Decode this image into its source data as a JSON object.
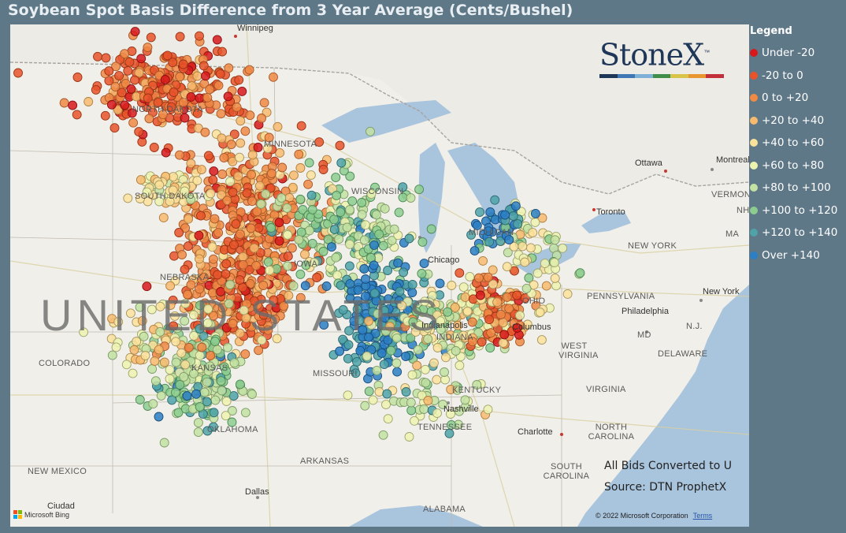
{
  "title": "Soybean Spot Basis Difference from 3 Year Average (Cents/Bushel)",
  "logo": {
    "text": "StoneX",
    "tm": "™",
    "bar_colors": [
      "#1e3658",
      "#3e77b4",
      "#7fb0d8",
      "#3f8e4a",
      "#d9c44a",
      "#e8972f",
      "#c2303a"
    ]
  },
  "legend": {
    "title": "Legend",
    "items": [
      {
        "label": "Under -20",
        "color": "#d7191c"
      },
      {
        "label": "-20 to 0",
        "color": "#e8532c"
      },
      {
        "label": "0 to +20",
        "color": "#f08a45"
      },
      {
        "label": "+20 to +40",
        "color": "#f7bb70"
      },
      {
        "label": "+40 to +60",
        "color": "#fbe29b"
      },
      {
        "label": "+60 to +80",
        "color": "#eef3b0"
      },
      {
        "label": "+80 to +100",
        "color": "#c3e2a3"
      },
      {
        "label": "+100 to +120",
        "color": "#8ccc8f"
      },
      {
        "label": "+120 to +140",
        "color": "#4fa3a8"
      },
      {
        "label": "Over +140",
        "color": "#2b7fc4"
      }
    ]
  },
  "map": {
    "country_label": "UNITED STATES",
    "states": [
      "NORTH DAKOTA",
      "MINNESOTA",
      "SOUTH DAKOTA",
      "WISCONSIN",
      "NEBRASKA",
      "IOWA",
      "COLORADO",
      "MISSOURI",
      "KANSAS",
      "OKLAHOMA",
      "ARKANSAS",
      "NEW MEXICO",
      "TENNESSEE",
      "KENTUCKY",
      "WEST VIRGINIA",
      "VIRGINIA",
      "NORTH CAROLINA",
      "SOUTH CAROLINA",
      "ALABAMA",
      "PENNSYLVANIA",
      "NEW YORK",
      "MICHIGAN",
      "INDIANA",
      "OHIO",
      "MD",
      "DELAWARE",
      "N.J.",
      "VERMONT",
      "NH",
      "MA"
    ],
    "cities": [
      "Winnipeg",
      "Ottawa",
      "Montreal",
      "Toronto",
      "Chicago",
      "Indianapolis",
      "Columbus",
      "Philadelphia",
      "New York",
      "Nashville",
      "Charlotte",
      "Dallas",
      "Ciudad"
    ],
    "notes": [
      "All Bids Converted to U",
      "Source: DTN ProphetX"
    ],
    "copyright": "© 2022 Microsoft Corporation",
    "terms": "Terms",
    "bing": "Microsoft Bing"
  }
}
